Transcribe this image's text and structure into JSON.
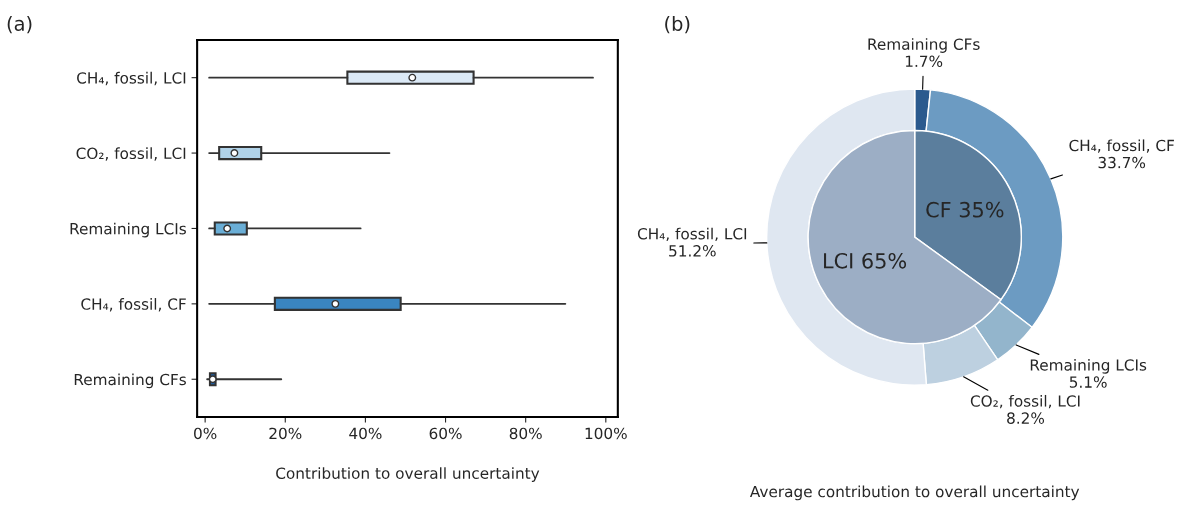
{
  "chart_data": [
    {
      "type": "box",
      "title": "(a)",
      "orientation": "horizontal",
      "xlabel": "Contribution to overall uncertainty",
      "categories": [
        "CH₄, fossil, LCI",
        "CO₂, fossil, LCI",
        "Remaining LCIs",
        "CH₄, fossil, CF",
        "Remaining CFs"
      ],
      "colors": [
        "#dbe9f6",
        "#b0d2e8",
        "#6aaed6",
        "#3a85c0",
        "#1f5fa5"
      ],
      "boxes": [
        {
          "low": 1,
          "q1": 35.5,
          "median": 51.7,
          "q3": 67,
          "high": 96.8
        },
        {
          "low": 1,
          "q1": 3.5,
          "median": 7.3,
          "q3": 14,
          "high": 46
        },
        {
          "low": 1,
          "q1": 2.4,
          "median": 5.5,
          "q3": 10.4,
          "high": 38.8
        },
        {
          "low": 1,
          "q1": 17.4,
          "median": 32.5,
          "q3": 48.8,
          "high": 89.9
        },
        {
          "low": 0.5,
          "q1": 1.2,
          "median": 1.9,
          "q3": 2.6,
          "high": 19
        }
      ],
      "xlim": [
        -2,
        103
      ],
      "xticks": [
        {
          "value": 0,
          "label": "0%"
        },
        {
          "value": 20,
          "label": "20%"
        },
        {
          "value": 40,
          "label": "40%"
        },
        {
          "value": 60,
          "label": "60%"
        },
        {
          "value": 80,
          "label": "80%"
        },
        {
          "value": 100,
          "label": "100%"
        }
      ],
      "grid": false
    },
    {
      "type": "donut",
      "title": "(b)",
      "xlabel": "Average contribution to overall uncertainty",
      "categories": [
        "Remaining CFs",
        "CH₄, fossil, CF",
        "Remaining LCIs",
        "CO₂, fossil, LCI",
        "CH₄, fossil, LCI",
        "CF",
        "LCI"
      ],
      "series": [
        {
          "values": [
            1.7,
            33.7,
            5.1,
            8.2,
            51.2,
            null,
            null
          ],
          "value_labels": [
            "1.7%",
            "33.7%",
            "5.1%",
            "8.2%",
            "51.2%",
            null,
            null
          ],
          "colors": [
            "#2b5a8e",
            "#6c9bc2",
            "#93b5cc",
            "#bdd0e0",
            "#dfe7f1",
            null,
            null
          ]
        },
        {
          "values": [
            null,
            null,
            null,
            null,
            null,
            35,
            65
          ],
          "value_labels": [
            null,
            null,
            null,
            null,
            null,
            "35%",
            "65%"
          ],
          "colors": [
            null,
            null,
            null,
            null,
            null,
            "#5b7e9d",
            "#9caec5"
          ]
        }
      ]
    }
  ]
}
